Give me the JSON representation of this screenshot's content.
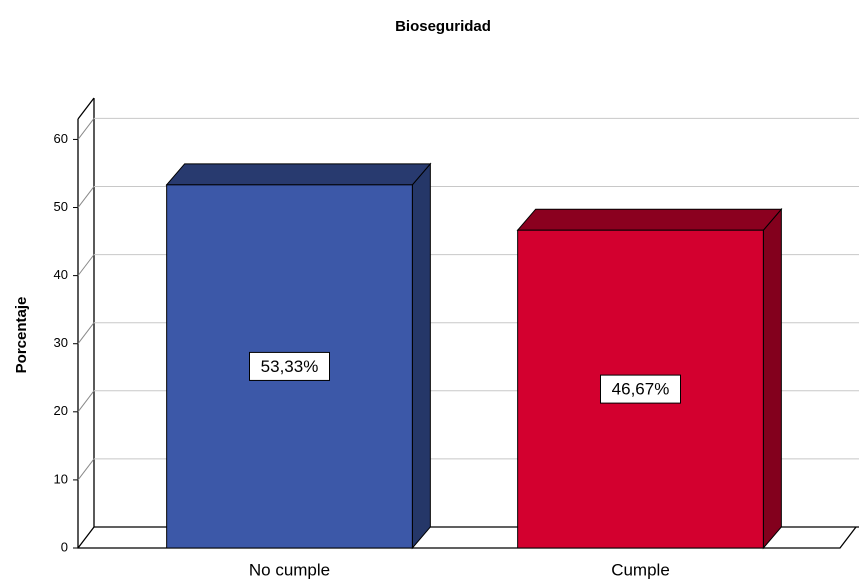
{
  "chart_data": {
    "type": "bar",
    "title": "Bioseguridad",
    "y_label": "Porcentaje",
    "categories": [
      "No cumple",
      "Cumple"
    ],
    "values": [
      53.33,
      46.67
    ],
    "value_labels": [
      "53,33%",
      "46,67%"
    ],
    "colors": [
      "#3c58a8",
      "#d3002f"
    ],
    "ylim": [
      0,
      63
    ],
    "yticks": [
      0,
      10,
      20,
      30,
      40,
      50,
      60
    ],
    "grid": true
  }
}
